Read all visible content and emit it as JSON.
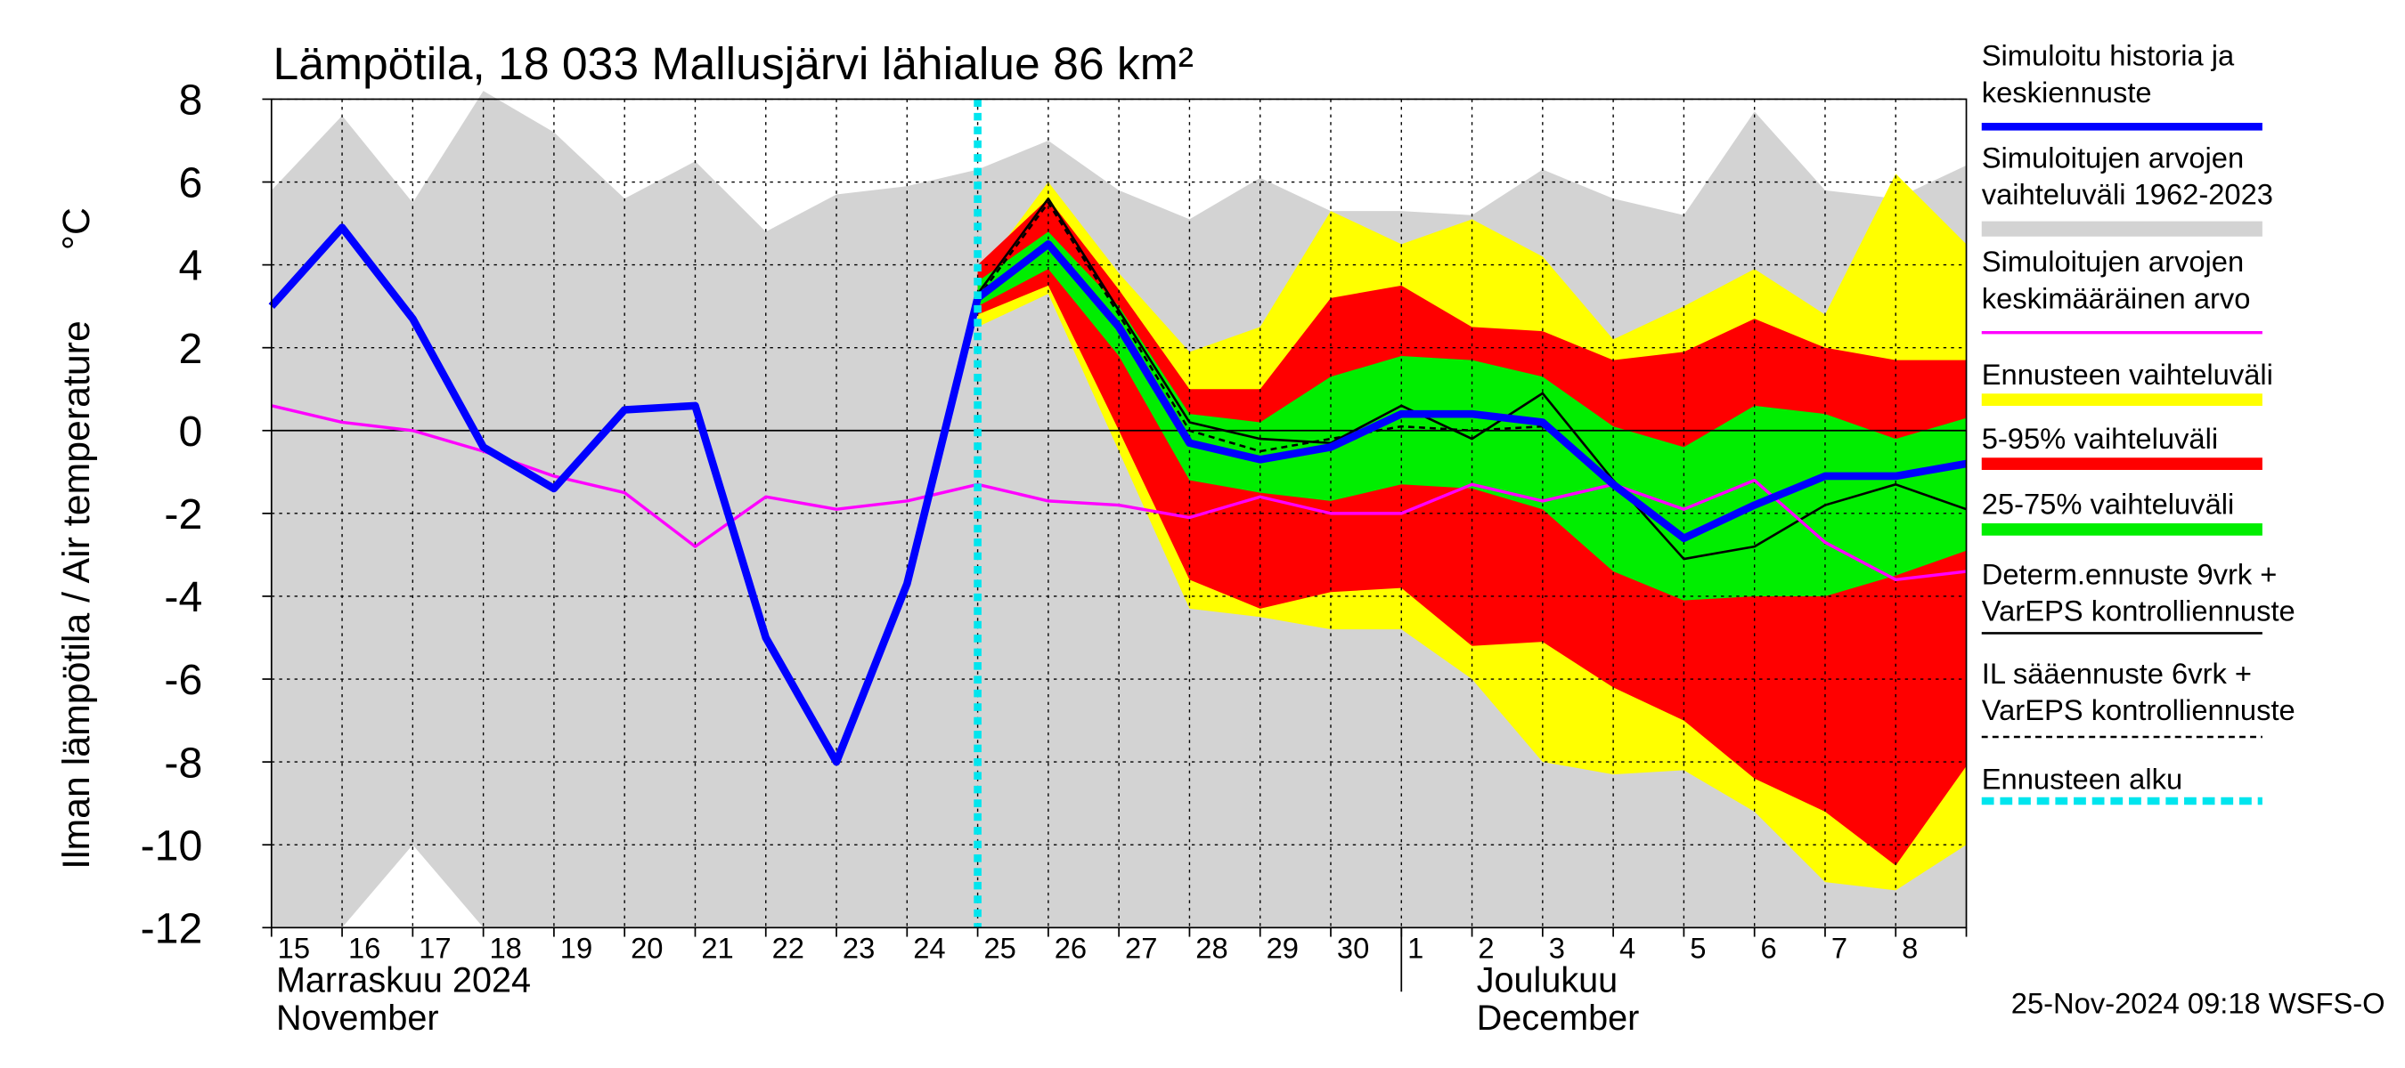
{
  "chart_data": {
    "type": "band-line",
    "title": "Lämpötila, 18 033 Mallusjärvi lähialue 86 km²",
    "y_label": "Ilman lämpötila / Air temperature",
    "y_unit": "°C",
    "timestamp": "25-Nov-2024 09:18 WSFS-O",
    "months": [
      [
        "Marraskuu 2024",
        "November"
      ],
      [
        "Joulukuu",
        "December"
      ]
    ],
    "x": [
      "15",
      "16",
      "17",
      "18",
      "19",
      "20",
      "21",
      "22",
      "23",
      "24",
      "25",
      "26",
      "27",
      "28",
      "29",
      "30",
      "1",
      "2",
      "3",
      "4",
      "5",
      "6",
      "7",
      "8",
      null
    ],
    "ylim": [
      -12,
      8
    ],
    "yticks": [
      -12,
      -10,
      -8,
      -6,
      -4,
      -2,
      0,
      2,
      4,
      6,
      8
    ],
    "grid": true,
    "series": [
      {
        "kind": "line",
        "name": [
          "Simuloitu historia ja",
          "keskiennuste"
        ],
        "color": "#0000ff",
        "width": 5,
        "values": [
          3.0,
          4.9,
          2.7,
          -0.4,
          -1.4,
          0.5,
          0.6,
          -5.0,
          -8.0,
          -3.7,
          3.2,
          4.5,
          2.5,
          -0.3,
          -0.7,
          -0.4,
          0.4,
          0.4,
          0.2,
          -1.3,
          -2.6,
          -1.8,
          -1.1,
          -1.1,
          -0.8
        ]
      },
      {
        "kind": "band",
        "name": [
          "Simuloitujen arvojen",
          "vaihteluväli 1962-2023"
        ],
        "color": "#d3d3d3",
        "width": 10,
        "upper": [
          5.8,
          7.6,
          5.5,
          8.2,
          7.2,
          5.6,
          6.5,
          4.8,
          5.7,
          5.9,
          6.3,
          7.0,
          5.8,
          5.1,
          6.1,
          5.3,
          5.3,
          5.2,
          6.3,
          5.6,
          5.2,
          7.7,
          5.8,
          5.6,
          6.4
        ],
        "lower": [
          -12,
          -12,
          -10,
          -12,
          -12,
          -12,
          -12,
          -12,
          -12,
          -12,
          -12,
          -12,
          -12,
          -12,
          -12,
          -12,
          -12,
          -12,
          -12,
          -12,
          -12,
          -12,
          -12,
          -12,
          -12
        ]
      },
      {
        "kind": "line",
        "name": [
          "Simuloitujen arvojen",
          "keskimääräinen arvo"
        ],
        "color": "#ff00ff",
        "width": 2,
        "values": [
          0.6,
          0.2,
          0.0,
          -0.5,
          -1.1,
          -1.5,
          -2.8,
          -1.6,
          -1.9,
          -1.7,
          -1.3,
          -1.7,
          -1.8,
          -2.1,
          -1.6,
          -2.0,
          -2.0,
          -1.3,
          -1.7,
          -1.3,
          -1.9,
          -1.2,
          -2.7,
          -3.6,
          -3.4
        ]
      },
      {
        "kind": "band",
        "name": [
          "Ennusteen vaihteluväli"
        ],
        "color": "#ffff00",
        "width": 8,
        "upper": [
          null,
          null,
          null,
          null,
          null,
          null,
          null,
          null,
          null,
          null,
          3.7,
          6.0,
          3.8,
          1.9,
          2.5,
          5.3,
          4.5,
          5.1,
          4.2,
          2.2,
          3.0,
          3.9,
          2.8,
          6.2,
          4.5
        ],
        "lower": [
          null,
          null,
          null,
          null,
          null,
          null,
          null,
          null,
          null,
          null,
          2.5,
          3.3,
          -0.5,
          -4.3,
          -4.5,
          -4.8,
          -4.8,
          -6.0,
          -8.0,
          -8.3,
          -8.2,
          -9.2,
          -10.9,
          -11.1,
          -10.0
        ]
      },
      {
        "kind": "band",
        "name": [
          "5-95% vaihteluväli"
        ],
        "color": "#ff0000",
        "width": 8,
        "upper": [
          null,
          null,
          null,
          null,
          null,
          null,
          null,
          null,
          null,
          null,
          4.0,
          5.6,
          3.4,
          1.0,
          1.0,
          3.2,
          3.5,
          2.5,
          2.4,
          1.7,
          1.9,
          2.7,
          2.0,
          1.7,
          1.7
        ],
        "lower": [
          null,
          null,
          null,
          null,
          null,
          null,
          null,
          null,
          null,
          null,
          2.8,
          3.5,
          0.0,
          -3.6,
          -4.3,
          -3.9,
          -3.8,
          -5.2,
          -5.1,
          -6.2,
          -7.0,
          -8.4,
          -9.2,
          -10.5,
          -8.1
        ]
      },
      {
        "kind": "band",
        "name": [
          "25-75% vaihteluväli"
        ],
        "color": "#00ee00",
        "width": 8,
        "upper": [
          null,
          null,
          null,
          null,
          null,
          null,
          null,
          null,
          null,
          null,
          3.6,
          4.8,
          3.0,
          0.4,
          0.2,
          1.3,
          1.8,
          1.7,
          1.3,
          0.1,
          -0.4,
          0.6,
          0.4,
          -0.2,
          0.3
        ],
        "lower": [
          null,
          null,
          null,
          null,
          null,
          null,
          null,
          null,
          null,
          null,
          3.0,
          3.9,
          1.8,
          -1.2,
          -1.5,
          -1.7,
          -1.3,
          -1.4,
          -1.9,
          -3.4,
          -4.1,
          -4.0,
          -4.0,
          -3.5,
          -2.9
        ]
      },
      {
        "kind": "line",
        "name": [
          "Determ.ennuste 9vrk +",
          "VarEPS kontrolliennuste"
        ],
        "color": "#000000",
        "width": 1.5,
        "values": [
          null,
          null,
          null,
          null,
          null,
          null,
          null,
          null,
          -8.0,
          -3.7,
          3.3,
          5.6,
          2.9,
          0.2,
          -0.2,
          -0.3,
          0.6,
          -0.2,
          0.9,
          -1.2,
          -3.1,
          -2.8,
          -1.8,
          -1.3,
          -1.9
        ]
      },
      {
        "kind": "line",
        "name": [
          "IL sääennuste 6vrk  +",
          "VarEPS kontrolliennuste"
        ],
        "color": "#000000",
        "width": 1.5,
        "dash": true,
        "values": [
          null,
          null,
          null,
          null,
          null,
          null,
          null,
          null,
          null,
          null,
          3.2,
          5.5,
          2.8,
          0.0,
          -0.5,
          -0.2,
          0.1,
          0.0,
          0.1,
          null,
          null,
          null,
          null,
          null,
          null
        ]
      },
      {
        "kind": "vline",
        "name": [
          "Ennusteen alku"
        ],
        "color": "#00e5ee",
        "width": 5,
        "at": "25"
      }
    ]
  }
}
